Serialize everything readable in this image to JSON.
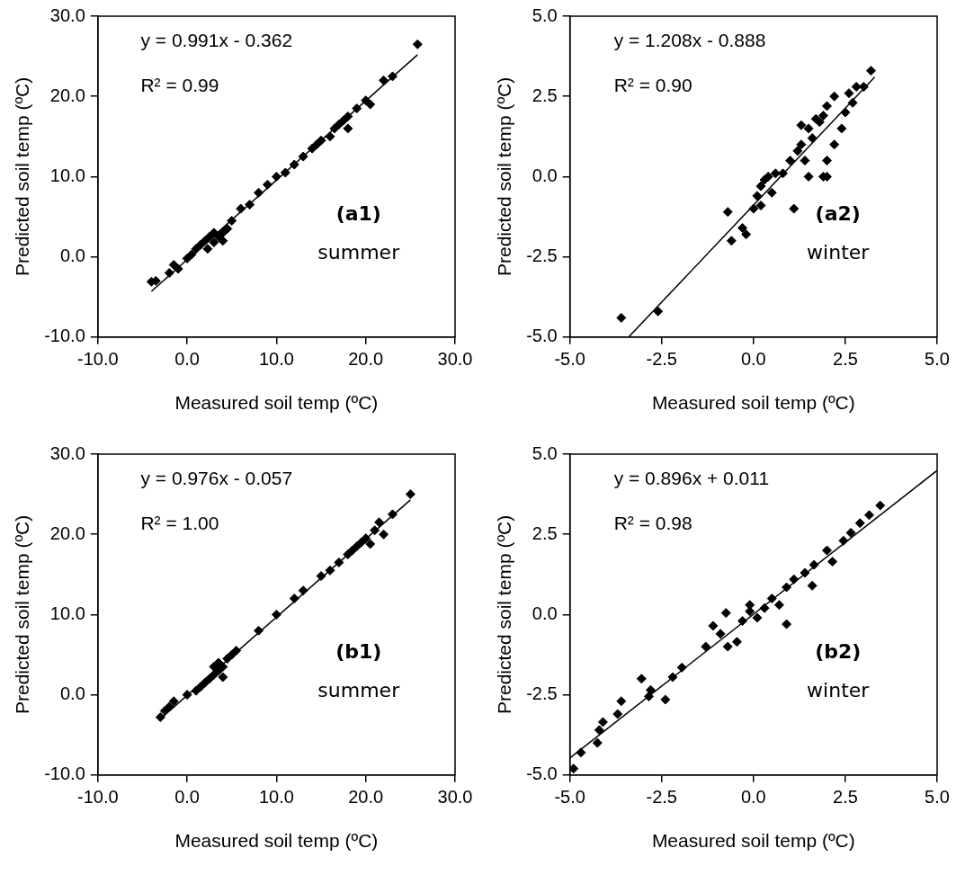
{
  "chart_data": [
    {
      "type": "scatter",
      "xlabel": "Measured soil temp (ºC)",
      "ylabel": "Predicted soil temp (ºC)",
      "xlim": [
        -10,
        30
      ],
      "ylim": [
        -10,
        30
      ],
      "xticks": [
        {
          "value": -10,
          "label": "-10.0"
        },
        {
          "value": 0,
          "label": "0.0"
        },
        {
          "value": 10,
          "label": "10.0"
        },
        {
          "value": 20,
          "label": "20.0"
        },
        {
          "value": 30,
          "label": "30.0"
        }
      ],
      "yticks": [
        {
          "value": -10,
          "label": "-10.0"
        },
        {
          "value": 0,
          "label": "0.0"
        },
        {
          "value": 10,
          "label": "10.0"
        },
        {
          "value": 20,
          "label": "20.0"
        },
        {
          "value": 30,
          "label": "30.0"
        }
      ],
      "grid": false,
      "legend": false,
      "marker": "diamond",
      "annotations": [
        "y = 0.991x - 0.362",
        "R² = 0.99",
        "(a1)",
        "summer"
      ],
      "series": [
        {
          "color": "#000000",
          "x": [
            -4,
            -3.5,
            -2,
            -1.5,
            -1,
            0,
            0.5,
            1,
            1.5,
            2,
            2.3,
            2.5,
            3,
            3,
            3.5,
            4,
            4,
            4.5,
            5,
            6,
            7,
            8,
            9,
            10,
            11,
            12,
            13,
            14,
            14.5,
            15,
            16,
            16.5,
            17,
            17.5,
            18,
            18,
            19,
            20,
            20.5,
            22,
            23,
            25.8
          ],
          "values": [
            -3.1,
            -3,
            -2,
            -1,
            -1.5,
            -0.2,
            0.3,
            1,
            1.5,
            2,
            1,
            2.5,
            1.8,
            3,
            2.5,
            3,
            2,
            3.5,
            4.5,
            6,
            6.5,
            8,
            9,
            10,
            10.5,
            11.5,
            12.5,
            13.5,
            14,
            14.5,
            15,
            16,
            16.5,
            17,
            16,
            17.5,
            18.5,
            19.5,
            19,
            22,
            22.5,
            26.5
          ]
        },
        {
          "type": "line",
          "color": "#000000",
          "marker": "none",
          "x": [
            -4,
            25.8
          ],
          "values": [
            -4.3,
            25.2
          ]
        }
      ]
    },
    {
      "type": "scatter",
      "xlabel": "Measured soil temp (ºC)",
      "ylabel": "Predicted soil temp (ºC)",
      "xlim": [
        -5,
        5
      ],
      "ylim": [
        -5,
        5
      ],
      "xticks": [
        {
          "value": -5,
          "label": "-5.0"
        },
        {
          "value": -2.5,
          "label": "-2.5"
        },
        {
          "value": 0,
          "label": "0.0"
        },
        {
          "value": 2.5,
          "label": "2.5"
        },
        {
          "value": 5,
          "label": "5.0"
        }
      ],
      "yticks": [
        {
          "value": -5,
          "label": "-5.0"
        },
        {
          "value": -2.5,
          "label": "-2.5"
        },
        {
          "value": 0,
          "label": "0.0"
        },
        {
          "value": 2.5,
          "label": "2.5"
        },
        {
          "value": 5,
          "label": "5.0"
        }
      ],
      "grid": false,
      "legend": false,
      "marker": "diamond",
      "annotations": [
        "y = 1.208x - 0.888",
        "R² = 0.90",
        "(a2)",
        "winter"
      ],
      "series": [
        {
          "color": "#000000",
          "x": [
            -3.6,
            -2.6,
            -0.7,
            -0.6,
            -0.3,
            -0.2,
            0,
            0.1,
            0.2,
            0.3,
            0.4,
            0.5,
            0.2,
            0.6,
            0.8,
            1.0,
            1.2,
            1.3,
            1.4,
            1.5,
            1.6,
            1.8,
            1.9,
            1.5,
            1.9,
            2.0,
            1.1,
            2.0,
            2.2,
            2.4,
            2.0,
            2.2,
            2.5,
            2.7,
            2.8,
            3.0,
            3.2,
            2.6,
            1.7,
            1.3
          ],
          "values": [
            -4.4,
            -4.2,
            -1.1,
            -2.0,
            -1.6,
            -1.8,
            -1.0,
            -0.6,
            -0.3,
            -0.1,
            0,
            -0.5,
            -0.9,
            0.1,
            0.1,
            0.5,
            0.8,
            1.0,
            0.5,
            1.5,
            1.2,
            1.7,
            1.9,
            0,
            0,
            0,
            -1.0,
            0.5,
            1.0,
            1.5,
            2.2,
            2.5,
            2.0,
            2.3,
            2.8,
            2.8,
            3.3,
            2.6,
            1.8,
            1.6
          ]
        },
        {
          "type": "line",
          "color": "#000000",
          "marker": "none",
          "x": [
            -3.4,
            3.3
          ],
          "values": [
            -5,
            3.1
          ]
        }
      ]
    },
    {
      "type": "scatter",
      "xlabel": "Measured soil temp (ºC)",
      "ylabel": "Predicted soil temp (ºC)",
      "xlim": [
        -10,
        30
      ],
      "ylim": [
        -10,
        30
      ],
      "xticks": [
        {
          "value": -10,
          "label": "-10.0"
        },
        {
          "value": 0,
          "label": "0.0"
        },
        {
          "value": 10,
          "label": "10.0"
        },
        {
          "value": 20,
          "label": "20.0"
        },
        {
          "value": 30,
          "label": "30.0"
        }
      ],
      "yticks": [
        {
          "value": -10,
          "label": "-10.0"
        },
        {
          "value": 0,
          "label": "0.0"
        },
        {
          "value": 10,
          "label": "10.0"
        },
        {
          "value": 20,
          "label": "20.0"
        },
        {
          "value": 30,
          "label": "30.0"
        }
      ],
      "grid": false,
      "legend": false,
      "marker": "diamond",
      "annotations": [
        "y = 0.976x - 0.057",
        "R² = 1.00",
        "(b1)",
        "summer"
      ],
      "series": [
        {
          "color": "#000000",
          "x": [
            -3,
            -2.5,
            -2,
            -1.5,
            0,
            1,
            1.5,
            2,
            2.5,
            3,
            3,
            3.5,
            3.5,
            4,
            4,
            4.5,
            5,
            5.5,
            8,
            10,
            12,
            13,
            15,
            16,
            17,
            18,
            18.5,
            19,
            19.5,
            20,
            20.5,
            21,
            21.5,
            22,
            23,
            25
          ],
          "values": [
            -2.8,
            -2,
            -1.5,
            -0.8,
            0,
            0.5,
            1,
            1.5,
            2,
            2.5,
            3.5,
            3,
            4,
            3.5,
            2.2,
            4.5,
            5,
            5.5,
            8,
            10,
            12,
            13,
            14.8,
            15.5,
            16.5,
            17.5,
            18,
            18.5,
            19,
            19.5,
            18.8,
            20.5,
            21.5,
            20,
            22.5,
            25
          ]
        },
        {
          "type": "line",
          "color": "#000000",
          "marker": "none",
          "x": [
            -3,
            25
          ],
          "values": [
            -3,
            24.3
          ]
        }
      ]
    },
    {
      "type": "scatter",
      "xlabel": "Measured soil temp (ºC)",
      "ylabel": "Predicted soil temp (ºC)",
      "xlim": [
        -5,
        5
      ],
      "ylim": [
        -5,
        5
      ],
      "xticks": [
        {
          "value": -5,
          "label": "-5.0"
        },
        {
          "value": -2.5,
          "label": "-2.5"
        },
        {
          "value": 0,
          "label": "0.0"
        },
        {
          "value": 2.5,
          "label": "2.5"
        },
        {
          "value": 5,
          "label": "5.0"
        }
      ],
      "yticks": [
        {
          "value": -5,
          "label": "-5.0"
        },
        {
          "value": -2.5,
          "label": "-2.5"
        },
        {
          "value": 0,
          "label": "0.0"
        },
        {
          "value": 2.5,
          "label": "2.5"
        },
        {
          "value": 5,
          "label": "5.0"
        }
      ],
      "grid": false,
      "legend": false,
      "marker": "diamond",
      "annotations": [
        "y = 0.896x + 0.011",
        "R² = 0.98",
        "(b2)",
        "winter"
      ],
      "series": [
        {
          "color": "#000000",
          "x": [
            -4.9,
            -4.7,
            -4.25,
            -4.2,
            -4.1,
            -3.7,
            -3.6,
            -3.05,
            -2.8,
            -2.85,
            -2.4,
            -2.2,
            -1.95,
            -1.3,
            -1.1,
            -0.9,
            -0.7,
            -0.45,
            -0.75,
            -0.3,
            -0.1,
            0.1,
            0.3,
            0.5,
            0.7,
            0.9,
            0.9,
            1.1,
            1.4,
            1.6,
            1.65,
            2.0,
            2.15,
            2.45,
            2.65,
            2.9,
            3.15,
            3.45,
            -0.1
          ],
          "values": [
            -4.8,
            -4.3,
            -4.0,
            -3.6,
            -3.35,
            -3.1,
            -2.7,
            -2.0,
            -2.35,
            -2.55,
            -2.65,
            -1.95,
            -1.65,
            -1.0,
            -0.35,
            -0.6,
            -1.0,
            -0.85,
            0.05,
            -0.2,
            0.1,
            -0.1,
            0.2,
            0.5,
            0.3,
            -0.3,
            0.85,
            1.1,
            1.3,
            0.9,
            1.55,
            2.0,
            1.65,
            2.3,
            2.55,
            2.85,
            3.1,
            3.4,
            0.3
          ]
        },
        {
          "type": "line",
          "color": "#000000",
          "marker": "none",
          "x": [
            -5,
            5
          ],
          "values": [
            -4.47,
            4.49
          ]
        }
      ]
    }
  ]
}
